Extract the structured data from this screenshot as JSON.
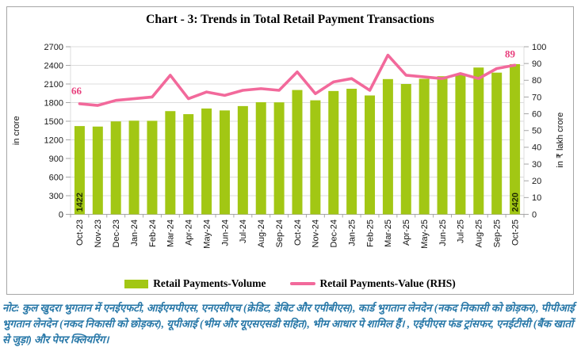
{
  "chart_data": {
    "type": "combo-bar-line",
    "title": "Chart - 3: Trends in Total Retail Payment Transactions",
    "categories": [
      "Oct-23",
      "Nov-23",
      "Dec-23",
      "Jan-24",
      "Feb-24",
      "Mar-24",
      "Apr-24",
      "May-24",
      "Jun-24",
      "Jul-24",
      "Aug-24",
      "Sep-24",
      "Oct-24",
      "Nov-24",
      "Dec-24",
      "Jan-25",
      "Feb-25",
      "Mar-25",
      "Apr-25",
      "May-25",
      "Jun-25",
      "Jul-25",
      "Aug-25",
      "Sep-25",
      "Oct-25"
    ],
    "series": [
      {
        "name": "Retail Payments-Volume",
        "type": "bar",
        "axis": "left",
        "color": "#a2c714",
        "values": [
          1422,
          1414,
          1497,
          1509,
          1507,
          1663,
          1614,
          1705,
          1674,
          1744,
          1806,
          1804,
          2003,
          1837,
          1987,
          2023,
          1915,
          2179,
          2100,
          2183,
          2225,
          2253,
          2365,
          2283,
          2420
        ]
      },
      {
        "name": "Retail Payments-Value (RHS)",
        "type": "line",
        "axis": "right",
        "color": "#f2699b",
        "values": [
          66,
          65,
          68,
          69,
          70,
          83,
          69,
          73,
          71,
          74,
          75,
          74,
          85,
          72,
          79,
          81,
          74,
          95,
          83,
          82,
          81,
          84,
          81,
          87,
          89
        ]
      }
    ],
    "left_axis": {
      "label": "in crore",
      "min": 0,
      "max": 2700,
      "step": 300
    },
    "right_axis": {
      "label": "in ₹ lakh crore",
      "min": 0,
      "max": 100,
      "step": 10
    },
    "annotations": {
      "line_first": "66",
      "line_last": "89",
      "bar_first": "1422",
      "bar_last": "2420",
      "annotation_color": "#e8417e",
      "bar_label_color": "#1f2a00"
    },
    "grid": true,
    "legend_position": "bottom"
  },
  "note": {
    "text": "नोट: कुल खुदरा भुगतान में एनईएफटी, आईएमपीएस, एनएसीएच (क्रेडिट, डेबिट और एपीबीएस), कार्ड भुगतान लेनदेन (नकद निकासी को छोड़कर), पीपीआई भुगतान लेनदेन (नकद निकासी को छोड़कर), यूपीआई (भीम और यूएसएसडी सहित), भीम आधार पे शामिल हैं। , एईपीएस फंड ट्रांसफर, एनईटीसी (बैंक खातों से जुड़ा) और पेपर क्लियरिंग।"
  },
  "colors": {
    "grid": "#dcdcdc",
    "axis": "#a6a6a6",
    "tick_text": "#1a1a1a",
    "frame_border": "#a6a6a6",
    "note_text": "#2878a8"
  }
}
